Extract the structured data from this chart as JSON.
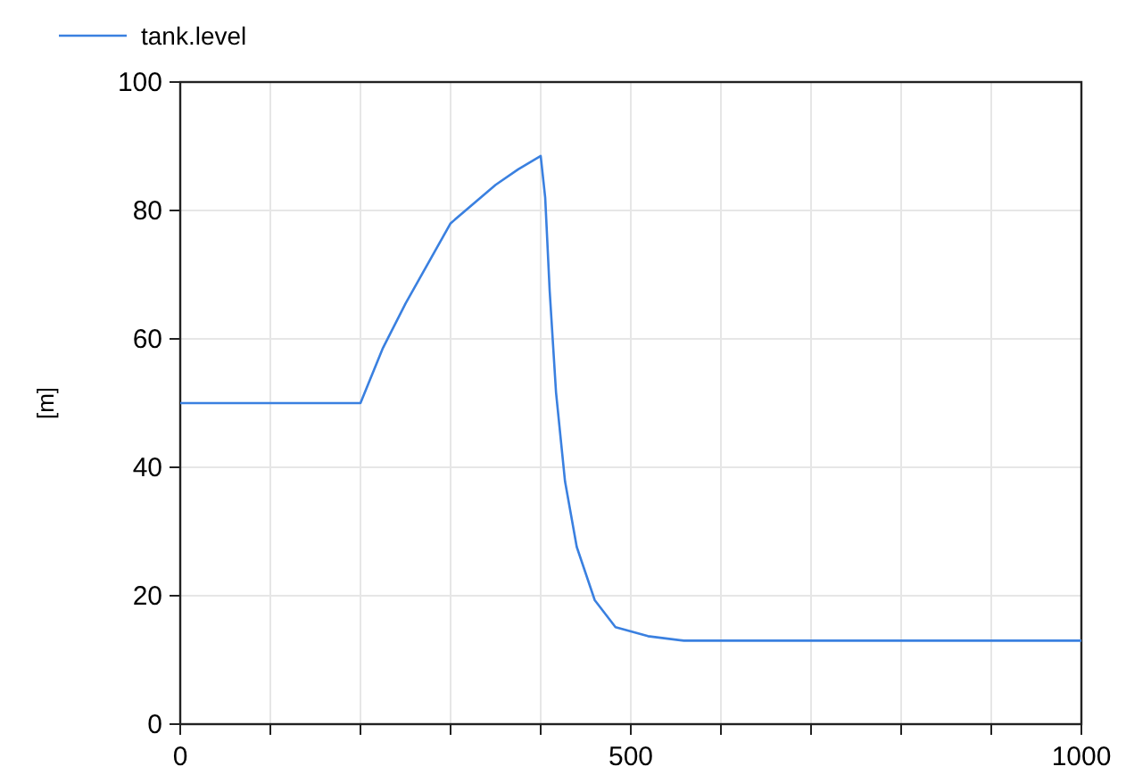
{
  "chart_data": {
    "type": "line",
    "ylabel": "[m]",
    "xlim": [
      0,
      1000
    ],
    "ylim": [
      0,
      100
    ],
    "xticks": [
      0,
      {
        "value": 100,
        "label": null
      },
      {
        "value": 200,
        "label": null
      },
      {
        "value": 300,
        "label": null
      },
      {
        "value": 400,
        "label": null
      },
      500,
      {
        "value": 600,
        "label": null
      },
      {
        "value": 700,
        "label": null
      },
      {
        "value": 800,
        "label": null
      },
      {
        "value": 900,
        "label": null
      },
      1000
    ],
    "yticks": [
      0,
      20,
      40,
      60,
      80,
      100
    ],
    "grid": true,
    "legend": "top left",
    "x": [
      0,
      200,
      225,
      250,
      300,
      350,
      375,
      400,
      405,
      410,
      417,
      427,
      440,
      460,
      483,
      519,
      559,
      1000
    ],
    "series": [
      {
        "name": "tank.level",
        "color": "#3a80e0",
        "values": [
          50,
          50,
          58.6,
          65.5,
          78,
          84,
          86.4,
          88.5,
          82,
          67.4,
          51.7,
          37.8,
          27.6,
          19.3,
          15.1,
          13.7,
          13,
          13
        ]
      }
    ]
  }
}
